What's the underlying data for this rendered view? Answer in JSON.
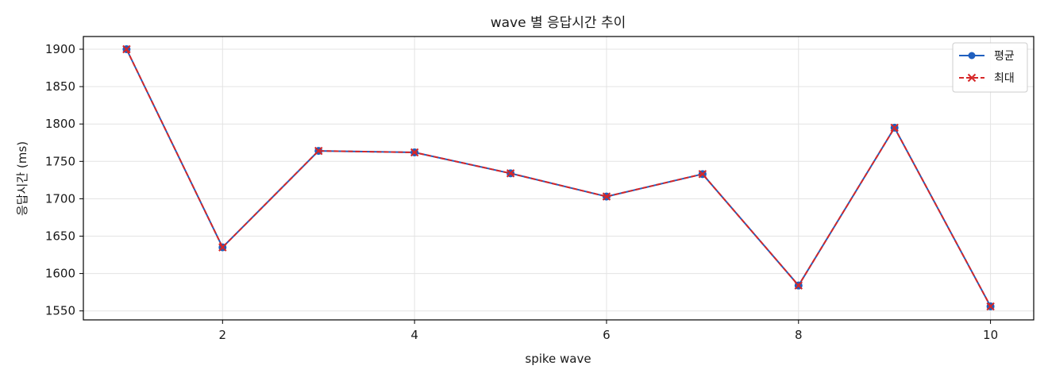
{
  "chart_data": {
    "type": "line",
    "title": "wave 별 응답시간 추이",
    "xlabel": "spike wave",
    "ylabel": "응답시간 (ms)",
    "x": [
      1,
      2,
      3,
      4,
      5,
      6,
      7,
      8,
      9,
      10
    ],
    "series": [
      {
        "name": "평균",
        "values": [
          1900,
          1635,
          1764,
          1762,
          1734,
          1703,
          1733,
          1584,
          1795,
          1556
        ],
        "color": "#1f5fbf",
        "style": "solid",
        "marker": "circle"
      },
      {
        "name": "최대",
        "values": [
          1900,
          1635,
          1764,
          1762,
          1734,
          1703,
          1733,
          1584,
          1795,
          1556
        ],
        "color": "#d62728",
        "style": "dashed",
        "marker": "x"
      }
    ],
    "xlim": [
      0.55,
      10.45
    ],
    "ylim": [
      1538,
      1917
    ],
    "xticks": [
      2,
      4,
      6,
      8,
      10
    ],
    "yticks": [
      1550,
      1600,
      1650,
      1700,
      1750,
      1800,
      1850,
      1900
    ],
    "grid": true,
    "legend_position": "top-right"
  }
}
